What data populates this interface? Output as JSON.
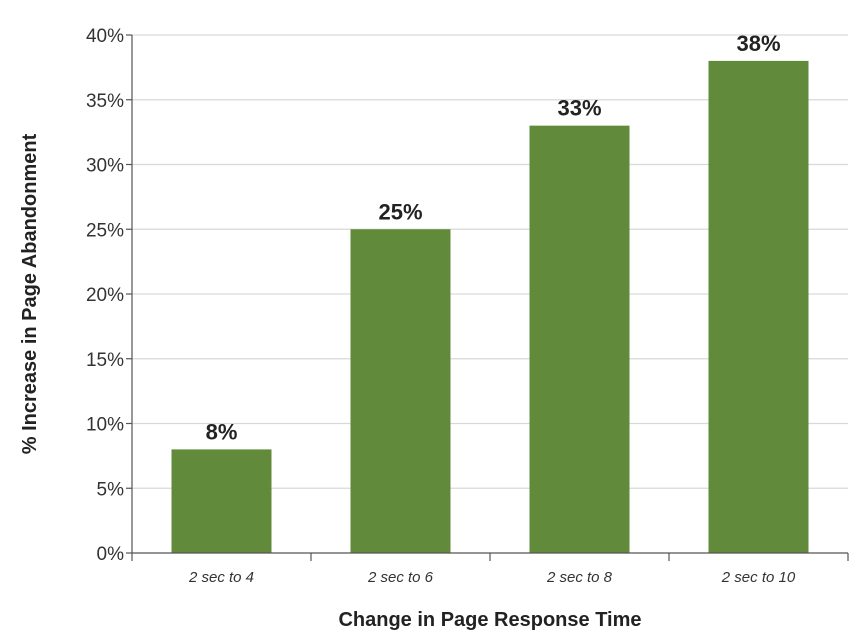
{
  "chart_data": {
    "type": "bar",
    "categories": [
      "2 sec to 4",
      "2 sec to 6",
      "2 sec to 8",
      "2 sec to 10"
    ],
    "values": [
      8,
      25,
      33,
      38
    ],
    "data_labels": [
      "8%",
      "25%",
      "33%",
      "38%"
    ],
    "title": "",
    "xlabel": "Change in Page Response Time",
    "ylabel": "% Increase in Page Abandonment",
    "ylim": [
      0,
      40
    ],
    "yticks": [
      0,
      5,
      10,
      15,
      20,
      25,
      30,
      35,
      40
    ],
    "ytick_labels": [
      "0%",
      "5%",
      "10%",
      "15%",
      "20%",
      "25%",
      "30%",
      "35%",
      "40%"
    ],
    "grid": true,
    "legend": "none",
    "bar_color": "#628a3b",
    "grid_color": "#d9d9d9"
  }
}
